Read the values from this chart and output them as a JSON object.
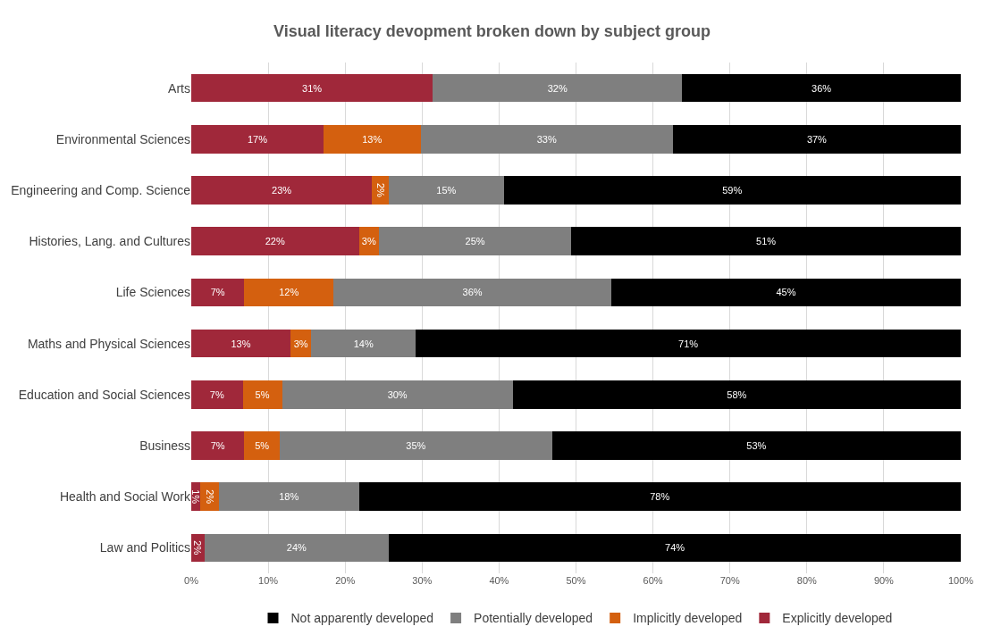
{
  "chart_data": {
    "type": "bar",
    "orientation": "horizontal",
    "stacked": true,
    "title": "Visual literacy devopment broken down by subject group",
    "categories": [
      "Arts",
      "Environmental Sciences",
      "Engineering and Comp. Science",
      "Histories, Lang. and Cultures",
      "Life Sciences",
      "Maths and Physical Sciences",
      "Education and Social Sciences",
      "Business",
      "Health and Social Work",
      "Law and Politics"
    ],
    "series": [
      {
        "name": "Explicitly developed",
        "color": "#a0283a",
        "values": [
          31.4,
          17.2,
          23.5,
          21.8,
          6.9,
          12.9,
          6.7,
          6.9,
          1.2,
          1.7
        ],
        "value_labels": [
          "31%",
          "17%",
          "23%",
          "22%",
          "7%",
          "13%",
          "7%",
          "7%",
          "1%",
          "2%"
        ]
      },
      {
        "name": "Implicitly developed",
        "color": "#d4600f",
        "values": [
          null,
          12.6,
          2.2,
          2.6,
          11.6,
          2.7,
          5.1,
          4.6,
          2.4,
          null
        ],
        "value_labels": [
          null,
          "13%",
          "2%",
          "3%",
          "12%",
          "3%",
          "5%",
          "5%",
          "2%",
          null
        ]
      },
      {
        "name": "Potentially developed",
        "color": "#7f7f7f",
        "values": [
          32.4,
          32.8,
          14.9,
          25.0,
          36.1,
          13.6,
          30.0,
          35.4,
          18.2,
          24.0
        ],
        "value_labels": [
          "32%",
          "33%",
          "15%",
          "25%",
          "36%",
          "14%",
          "30%",
          "35%",
          "18%",
          "24%"
        ]
      },
      {
        "name": "Not apparently developed",
        "color": "#000000",
        "values": [
          36.2,
          37.4,
          59.4,
          50.6,
          45.4,
          70.8,
          58.2,
          53.1,
          78.2,
          74.3
        ],
        "value_labels": [
          "36%",
          "37%",
          "59%",
          "51%",
          "45%",
          "71%",
          "58%",
          "53%",
          "78%",
          "74%"
        ]
      }
    ],
    "xlim": [
      0,
      100
    ],
    "xticks": [
      {
        "value": 0,
        "label": "0%"
      },
      {
        "value": 10,
        "label": "10%"
      },
      {
        "value": 20,
        "label": "20%"
      },
      {
        "value": 30,
        "label": "30%"
      },
      {
        "value": 40,
        "label": "40%"
      },
      {
        "value": 50,
        "label": "50%"
      },
      {
        "value": 60,
        "label": "60%"
      },
      {
        "value": 70,
        "label": "70%"
      },
      {
        "value": 80,
        "label": "80%"
      },
      {
        "value": 90,
        "label": "90%"
      },
      {
        "value": 100,
        "label": "100%"
      }
    ],
    "grid": "x",
    "legend": "bottom"
  }
}
